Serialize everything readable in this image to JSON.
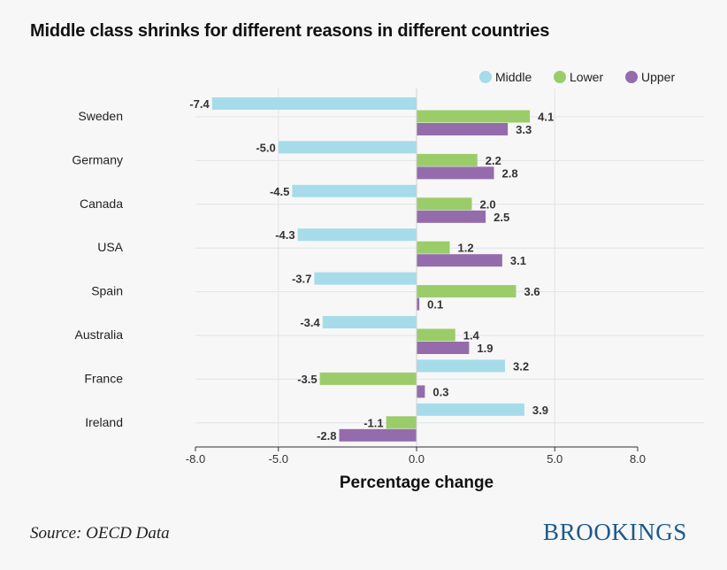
{
  "title": "Middle class shrinks for different reasons in different countries",
  "source": "Source: OECD Data",
  "logo": "BROOKINGS",
  "colors": {
    "Middle": "#a6dcea",
    "Lower": "#9bcc6a",
    "Upper": "#946cac"
  },
  "chart_data": {
    "type": "bar",
    "orientation": "horizontal",
    "categories": [
      "Sweden",
      "Germany",
      "Canada",
      "USA",
      "Spain",
      "Australia",
      "France",
      "Ireland"
    ],
    "series": [
      {
        "name": "Middle",
        "values": [
          -7.4,
          -5.0,
          -4.5,
          -4.3,
          -3.7,
          -3.4,
          3.2,
          3.9
        ]
      },
      {
        "name": "Lower",
        "values": [
          4.1,
          2.2,
          2.0,
          1.2,
          3.6,
          1.4,
          -3.5,
          -1.1
        ]
      },
      {
        "name": "Upper",
        "values": [
          3.3,
          2.8,
          2.5,
          3.1,
          0.1,
          1.9,
          0.3,
          -2.8
        ]
      }
    ],
    "xlabel": "Percentage change",
    "xlim": [
      -8.0,
      8.0
    ],
    "xticks": [
      -8.0,
      -5.0,
      0.0,
      5.0,
      8.0
    ],
    "grid": true,
    "legend": "top-right"
  }
}
